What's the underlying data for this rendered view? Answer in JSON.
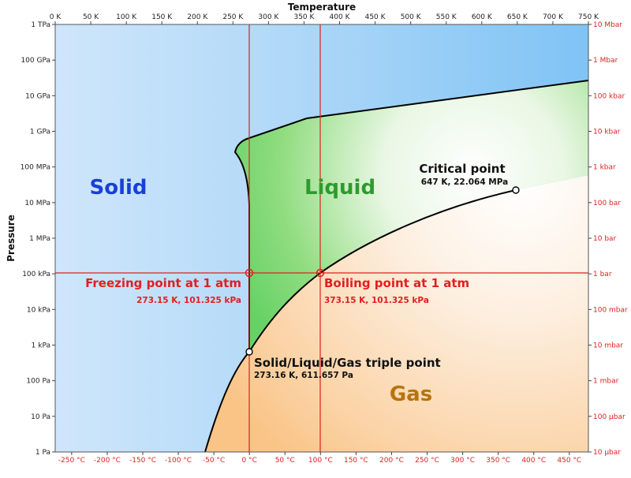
{
  "axes": {
    "top_title": "Temperature",
    "left_title": "Pressure",
    "kelvin_ticks": [
      "0 K",
      "50 K",
      "100 K",
      "150 K",
      "200 K",
      "250 K",
      "300 K",
      "350 K",
      "400 K",
      "450 K",
      "500 K",
      "550 K",
      "600 K",
      "650 K",
      "700 K",
      "750 K"
    ],
    "celsius_ticks": [
      "-250 °C",
      "-200 °C",
      "-150 °C",
      "-100 °C",
      "-50 °C",
      "0 °C",
      "50 °C",
      "100 °C",
      "150 °C",
      "200 °C",
      "250 °C",
      "300 °C",
      "350 °C",
      "400 °C",
      "450 °C"
    ],
    "pa_ticks": [
      "1 TPa",
      "100 GPa",
      "10 GPa",
      "1 GPa",
      "100 MPa",
      "10 MPa",
      "1 MPa",
      "100 kPa",
      "10 kPa",
      "1 kPa",
      "100 Pa",
      "10 Pa",
      "1 Pa"
    ],
    "bar_ticks": [
      "10 Mbar",
      "1 Mbar",
      "100 kbar",
      "10 kbar",
      "1 kbar",
      "100 bar",
      "10 bar",
      "1 bar",
      "100 mbar",
      "10 mbar",
      "1 mbar",
      "100 µbar",
      "10 µbar"
    ]
  },
  "regions": {
    "solid": "Solid",
    "liquid": "Liquid",
    "gas": "Gas"
  },
  "annotations": {
    "critical_title": "Critical point",
    "critical_sub": "647 K, 22.064 MPa",
    "freezing_title": "Freezing point at 1 atm",
    "freezing_sub": "273.15 K, 101.325 kPa",
    "boiling_title": "Boiling point at 1 atm",
    "boiling_sub": "373.15 K, 101.325 kPa",
    "triple_title": "Solid/Liquid/Gas triple point",
    "triple_sub": "273.16 K, 611.657 Pa"
  },
  "colors": {
    "solid": "#1a3fd6",
    "liquid": "#2e9a2e",
    "gas": "#b8720f",
    "reference_lines": "#e02020"
  }
}
